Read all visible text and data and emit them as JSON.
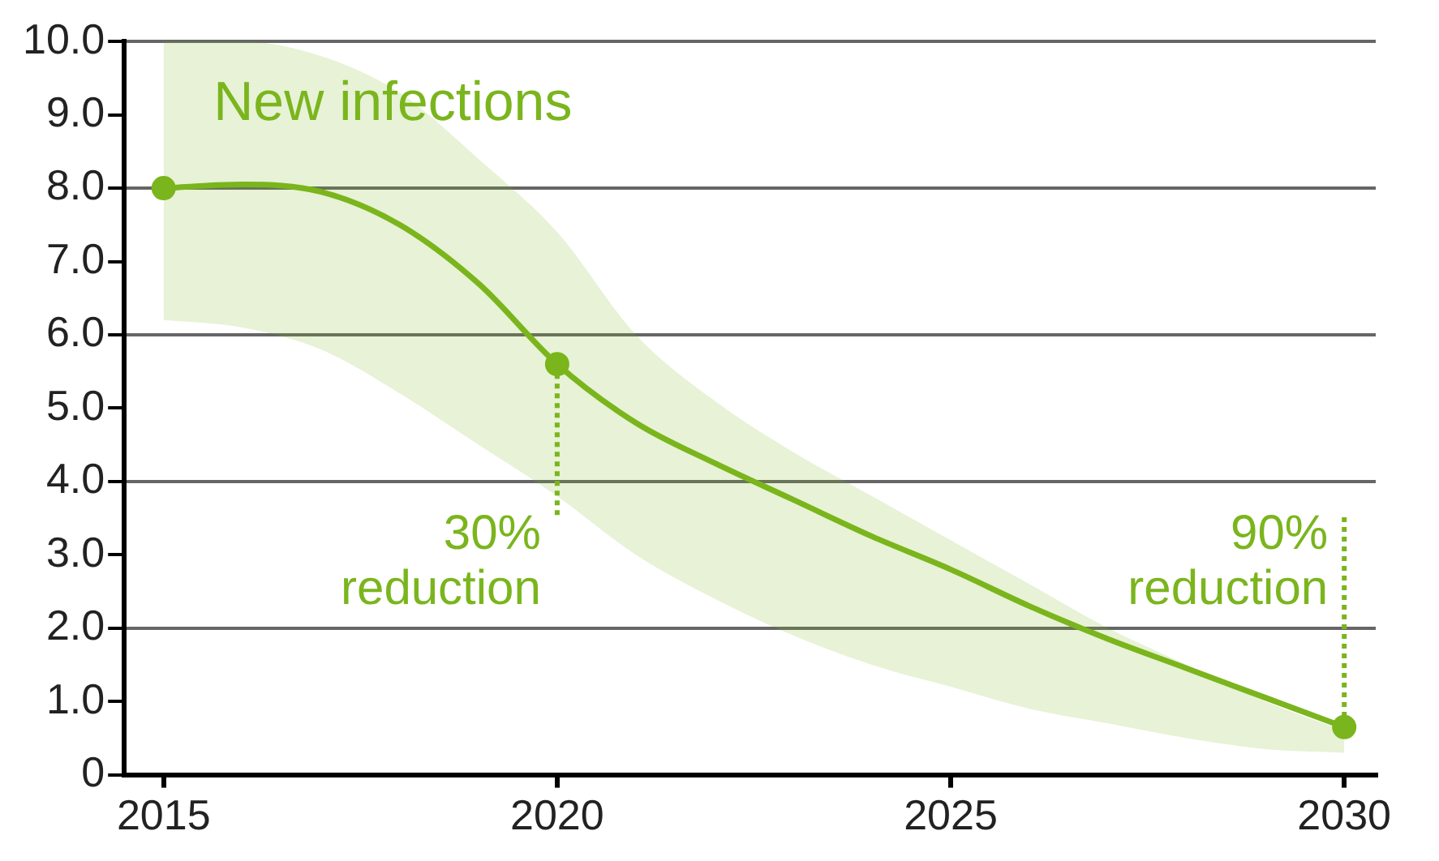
{
  "chart_data": {
    "type": "line",
    "x": [
      2015,
      2016,
      2017,
      2018,
      2019,
      2020,
      2021,
      2022,
      2023,
      2024,
      2025,
      2026,
      2027,
      2028,
      2029,
      2030
    ],
    "series": [
      {
        "name": "New infections",
        "color": "#7ab51d",
        "values": [
          8.0,
          8.05,
          7.95,
          7.5,
          6.7,
          5.6,
          4.8,
          4.25,
          3.75,
          3.25,
          2.8,
          2.3,
          1.85,
          1.45,
          1.05,
          0.65
        ],
        "lower": [
          6.2,
          6.1,
          5.8,
          5.2,
          4.5,
          3.8,
          3.0,
          2.4,
          1.9,
          1.5,
          1.2,
          0.9,
          0.7,
          0.5,
          0.35,
          0.3
        ],
        "upper": [
          10.0,
          10.0,
          9.8,
          9.3,
          8.4,
          7.4,
          6.0,
          5.1,
          4.4,
          3.8,
          3.2,
          2.6,
          2.0,
          1.5,
          1.0,
          0.6
        ]
      },
      {
        "type": "scatter",
        "color": "#7ab51d",
        "marker": "circle",
        "x": [
          2015,
          2020,
          2030
        ],
        "values": [
          8.0,
          5.6,
          0.65
        ]
      }
    ],
    "xlim": [
      2014.5,
      2030.4
    ],
    "xticks": [
      2015,
      2020,
      2025,
      2030
    ],
    "ylim": [
      0,
      10
    ],
    "yticks": [
      0,
      {
        "value": 1,
        "label": "1.0"
      },
      {
        "value": 2,
        "label": "2.0"
      },
      {
        "value": 3,
        "label": "3.0"
      },
      {
        "value": 4,
        "label": "4.0"
      },
      {
        "value": 5,
        "label": "5.0"
      },
      {
        "value": 6,
        "label": "6.0"
      },
      {
        "value": 7,
        "label": "7.0"
      },
      {
        "value": 8,
        "label": "8.0"
      },
      {
        "value": 9,
        "label": "9.0"
      },
      {
        "value": 10,
        "label": "10.0"
      }
    ],
    "grid": "y",
    "legend": false,
    "annotations": [
      {
        "text": "30%\nreduction",
        "x": 2020,
        "y": 5.6
      },
      {
        "text": "90%\nreduction",
        "x": 2030,
        "y": 0.65
      }
    ]
  }
}
